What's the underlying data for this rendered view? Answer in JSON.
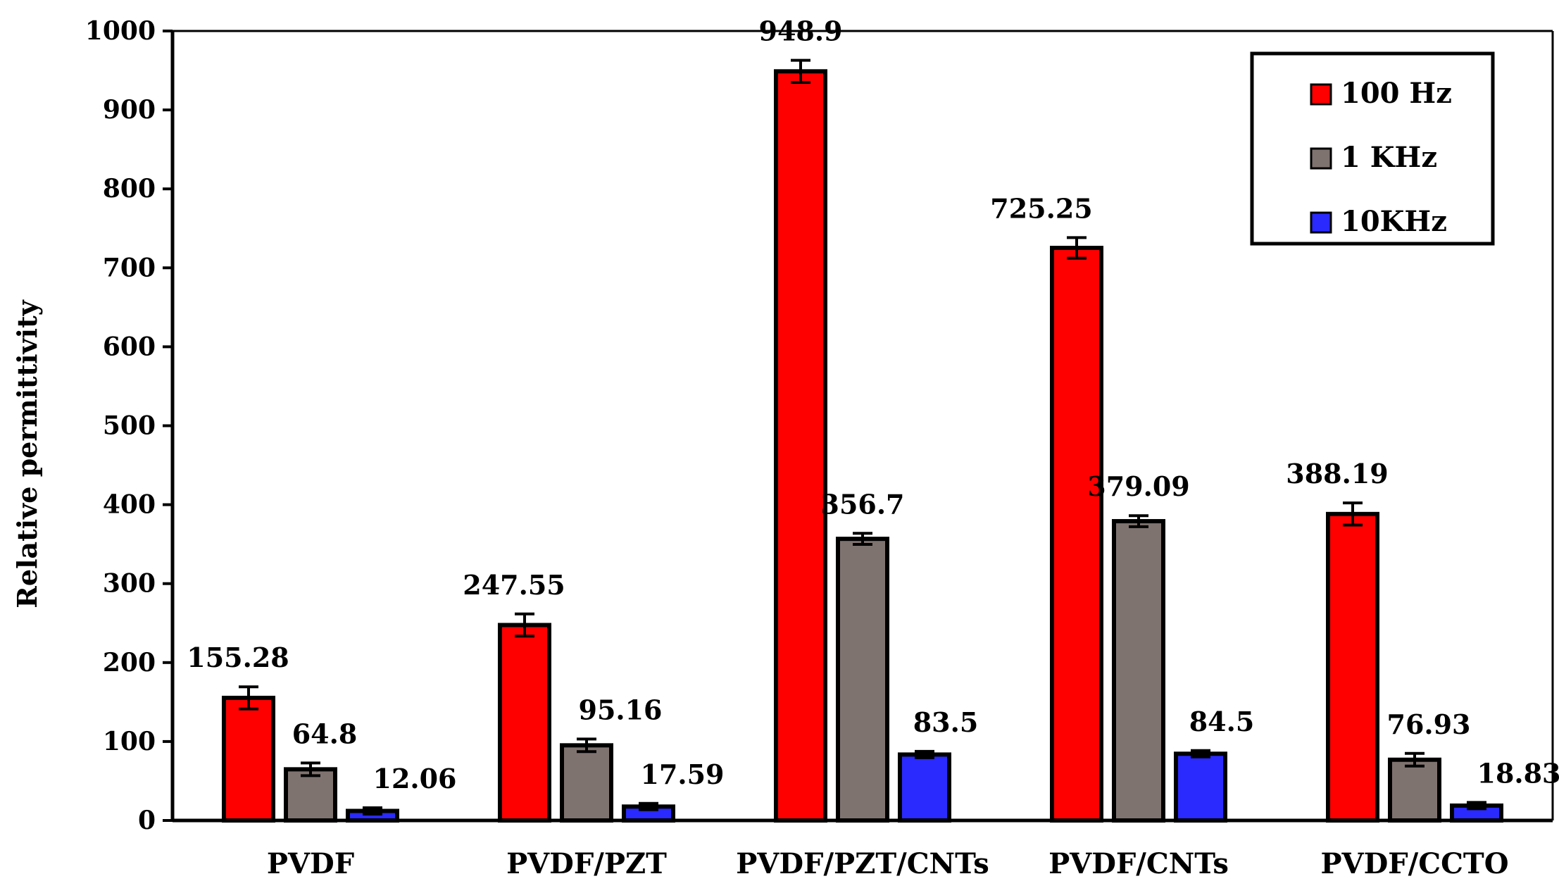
{
  "chart_data": {
    "type": "bar",
    "ylabel": "Relative permittivity",
    "xlabel": "",
    "ylim": [
      0,
      1000
    ],
    "yticks": [
      0,
      100,
      200,
      300,
      400,
      500,
      600,
      700,
      800,
      900,
      1000
    ],
    "categories": [
      "PVDF",
      "PVDF/PZT",
      "PVDF/PZT/CNTs",
      "PVDF/CNTs",
      "PVDF/CCTO"
    ],
    "series": [
      {
        "name": "100 Hz",
        "color": "#ff0000",
        "values": [
          155.28,
          247.55,
          948.9,
          725.25,
          388.19
        ],
        "labels": [
          "155.28",
          "247.55",
          "948.9",
          "725.25",
          "388.19"
        ],
        "errors": [
          14,
          14,
          14,
          13,
          14
        ]
      },
      {
        "name": "1 KHz",
        "color": "#7f7370",
        "values": [
          64.8,
          95.16,
          356.7,
          379.09,
          76.93
        ],
        "labels": [
          "64.8",
          "95.16",
          "356.7",
          "379.09",
          "76.93"
        ],
        "errors": [
          8,
          8,
          7,
          7,
          8
        ]
      },
      {
        "name": "10KHz",
        "color": "#2a2aff",
        "values": [
          12.06,
          17.59,
          83.5,
          84.5,
          18.83
        ],
        "labels": [
          "12.06",
          "17.59",
          "83.5",
          "84.5",
          "18.83"
        ],
        "errors": [
          4,
          4,
          4,
          4,
          4
        ]
      }
    ],
    "legend": {
      "position": "top-right",
      "entries": [
        "100 Hz",
        "1 KHz",
        "10KHz"
      ]
    },
    "grid": false
  }
}
